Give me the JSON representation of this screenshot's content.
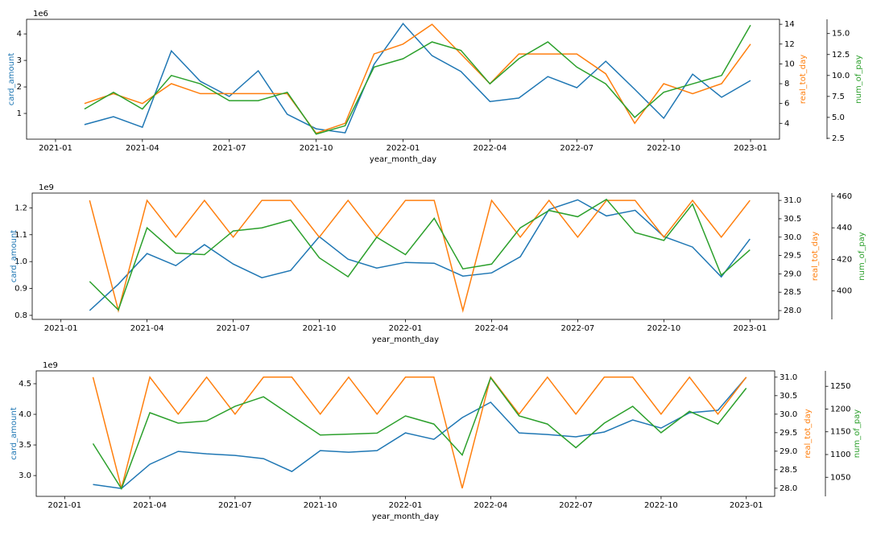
{
  "chart_data": [
    {
      "type": "line",
      "offset_label": "1e6",
      "xlabel": "year_month_day",
      "ylabel": "card_amount",
      "y2label": "real_tot_day",
      "y3label": "num_of_pay",
      "x": [
        "2021-02",
        "2021-03",
        "2021-04",
        "2021-05",
        "2021-06",
        "2021-07",
        "2021-08",
        "2021-09",
        "2021-10",
        "2021-11",
        "2021-12",
        "2022-01",
        "2022-02",
        "2022-03",
        "2022-04",
        "2022-05",
        "2022-06",
        "2022-07",
        "2022-08",
        "2022-09",
        "2022-10",
        "2022-11",
        "2022-12",
        "2023-01"
      ],
      "xlim": [
        "2020-12",
        "2023-02"
      ],
      "xticks": [
        "2021-01",
        "2021-04",
        "2021-07",
        "2021-10",
        "2022-01",
        "2022-04",
        "2022-07",
        "2022-10",
        "2023-01"
      ],
      "ylim": [
        0.03,
        4.55
      ],
      "yticks": [
        1,
        2,
        3,
        4
      ],
      "y2lim": [
        2.4,
        14.5
      ],
      "y2ticks": [
        4,
        6,
        8,
        10,
        12,
        14
      ],
      "y3lim": [
        2.4,
        16.7
      ],
      "y3ticks": [
        2.5,
        {
          "value": 5,
          "label": "5.0"
        },
        7.5,
        {
          "value": 10,
          "label": "10.0"
        },
        12.5,
        {
          "value": 15,
          "label": "15.0"
        }
      ],
      "series": [
        {
          "name": "card_amount",
          "color": "#1f77b4",
          "axis": "y",
          "values": [
            0.58,
            0.88,
            0.48,
            3.36,
            2.21,
            1.64,
            2.61,
            0.97,
            0.42,
            0.27,
            2.85,
            4.39,
            3.18,
            2.58,
            1.45,
            1.58,
            2.39,
            1.97,
            2.97,
            1.91,
            0.82,
            2.48,
            1.61,
            2.24
          ]
        },
        {
          "name": "real_tot_day",
          "color": "#ff7f0e",
          "axis": "y2",
          "values": [
            6,
            7,
            6,
            8,
            7,
            7,
            7,
            7,
            3,
            4,
            11,
            12,
            14,
            11,
            8,
            11,
            11,
            11,
            9,
            4,
            8,
            7,
            8,
            12
          ]
        },
        {
          "name": "num_of_pay",
          "color": "#2ca02c",
          "axis": "y3",
          "values": [
            6,
            8,
            6,
            10,
            9,
            7,
            7,
            8,
            3,
            4,
            11,
            12,
            14,
            13,
            9,
            12,
            14,
            11,
            9,
            5,
            8,
            9,
            10,
            16
          ]
        }
      ]
    },
    {
      "type": "line",
      "offset_label": "1e9",
      "xlabel": "year_month_day",
      "ylabel": "card_amount",
      "y2label": "real_tot_day",
      "y3label": "num_of_pay",
      "x": [
        "2021-02",
        "2021-03",
        "2021-04",
        "2021-05",
        "2021-06",
        "2021-07",
        "2021-08",
        "2021-09",
        "2021-10",
        "2021-11",
        "2021-12",
        "2022-01",
        "2022-02",
        "2022-03",
        "2022-04",
        "2022-05",
        "2022-06",
        "2022-07",
        "2022-08",
        "2022-09",
        "2022-10",
        "2022-11",
        "2022-12",
        "2023-01"
      ],
      "xlim": [
        "2020-12",
        "2023-02"
      ],
      "xticks": [
        "2021-01",
        "2021-04",
        "2021-07",
        "2021-10",
        "2022-01",
        "2022-04",
        "2022-07",
        "2022-10",
        "2023-01"
      ],
      "ylim": [
        0.785,
        1.255
      ],
      "yticks": [
        0.8,
        0.9,
        {
          "value": 1,
          "label": "1.0"
        },
        1.1,
        1.2
      ],
      "y2lim": [
        27.76,
        31.2
      ],
      "y2ticks": [
        {
          "value": 28,
          "label": "28.0"
        },
        28.5,
        {
          "value": 29,
          "label": "29.0"
        },
        29.5,
        {
          "value": 30,
          "label": "30.0"
        },
        30.5,
        {
          "value": 31,
          "label": "31.0"
        }
      ],
      "y3lim": [
        382,
        462
      ],
      "y3ticks": [
        400,
        420,
        440,
        460
      ],
      "series": [
        {
          "name": "card_amount",
          "color": "#1f77b4",
          "axis": "y",
          "values": [
            0.818,
            0.916,
            1.03,
            0.985,
            1.063,
            0.991,
            0.94,
            0.967,
            1.093,
            1.009,
            0.976,
            0.997,
            0.994,
            0.946,
            0.958,
            1.018,
            1.194,
            1.23,
            1.17,
            1.191,
            1.093,
            1.054,
            0.943,
            1.084
          ]
        },
        {
          "name": "real_tot_day",
          "color": "#ff7f0e",
          "axis": "y2",
          "values": [
            31,
            28,
            31,
            30,
            31,
            30,
            31,
            31,
            30,
            31,
            30,
            31,
            31,
            28,
            31,
            30,
            31,
            30,
            31,
            31,
            30,
            31,
            30,
            31
          ]
        },
        {
          "name": "num_of_pay",
          "color": "#2ca02c",
          "axis": "y3",
          "values": [
            406,
            388,
            440,
            424,
            423,
            438,
            440,
            445,
            421,
            409,
            434,
            423,
            446,
            414,
            417,
            440,
            451,
            447,
            458,
            437,
            432,
            455,
            410,
            426
          ]
        }
      ]
    },
    {
      "type": "line",
      "offset_label": "1e9",
      "xlabel": "year_month_day",
      "ylabel": "card_amount",
      "y2label": "real_tot_day",
      "y3label": "num_of_pay",
      "x": [
        "2021-02",
        "2021-03",
        "2021-04",
        "2021-05",
        "2021-06",
        "2021-07",
        "2021-08",
        "2021-09",
        "2021-10",
        "2021-11",
        "2021-12",
        "2022-01",
        "2022-02",
        "2022-03",
        "2022-04",
        "2022-05",
        "2022-06",
        "2022-07",
        "2022-08",
        "2022-09",
        "2022-10",
        "2022-11",
        "2022-12",
        "2023-01"
      ],
      "xlim": [
        "2020-12",
        "2023-02"
      ],
      "xticks": [
        "2021-01",
        "2021-04",
        "2021-07",
        "2021-10",
        "2022-01",
        "2022-04",
        "2022-07",
        "2022-10",
        "2023-01"
      ],
      "ylim": [
        2.66,
        4.71
      ],
      "yticks": [
        {
          "value": 3,
          "label": "3.0"
        },
        3.5,
        {
          "value": 4,
          "label": "4.0"
        },
        4.5
      ],
      "y2lim": [
        27.78,
        31.17
      ],
      "y2ticks": [
        {
          "value": 28,
          "label": "28.0"
        },
        28.5,
        {
          "value": 29,
          "label": "29.0"
        },
        29.5,
        {
          "value": 30,
          "label": "30.0"
        },
        30.5,
        {
          "value": 31,
          "label": "31.0"
        }
      ],
      "y3lim": [
        1008,
        1284
      ],
      "y3ticks": [
        1050,
        1100,
        1150,
        1200,
        1250
      ],
      "series": [
        {
          "name": "card_amount",
          "color": "#1f77b4",
          "axis": "y",
          "values": [
            2.855,
            2.789,
            3.184,
            3.395,
            3.355,
            3.329,
            3.276,
            3.066,
            3.408,
            3.382,
            3.408,
            3.697,
            3.592,
            3.947,
            4.197,
            3.697,
            3.671,
            3.632,
            3.711,
            3.908,
            3.776,
            4.026,
            4.066,
            4.605
          ]
        },
        {
          "name": "real_tot_day",
          "color": "#ff7f0e",
          "axis": "y2",
          "values": [
            31,
            28,
            31,
            30,
            31,
            30,
            31,
            31,
            30,
            31,
            30,
            31,
            31,
            28,
            31,
            30,
            31,
            30,
            31,
            31,
            30,
            31,
            30,
            31
          ]
        },
        {
          "name": "num_of_pay",
          "color": "#2ca02c",
          "axis": "y3",
          "values": [
            1124,
            1025,
            1192,
            1169,
            1174,
            1206,
            1227,
            1185,
            1143,
            1145,
            1147,
            1185,
            1167,
            1099,
            1269,
            1185,
            1167,
            1115,
            1169,
            1206,
            1148,
            1195,
            1167,
            1246
          ]
        }
      ]
    }
  ]
}
